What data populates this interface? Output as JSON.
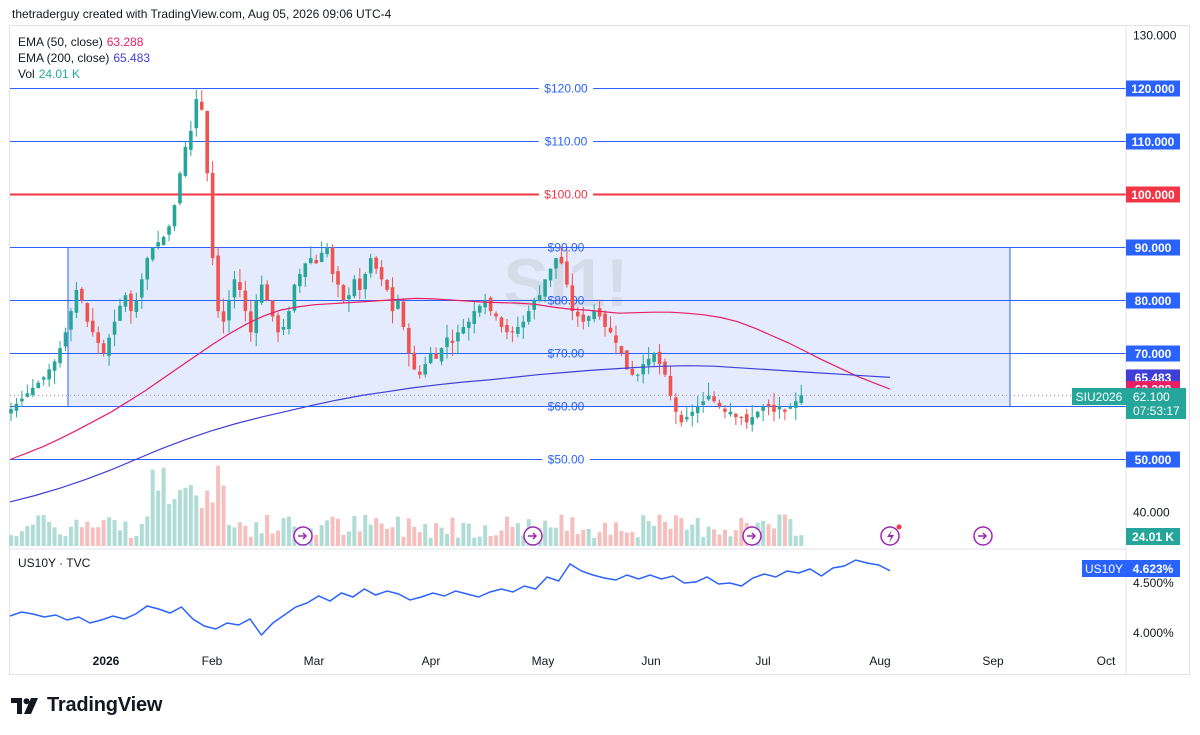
{
  "header": {
    "attribution": "thetraderguy created with TradingView.com, Aug 05, 2026 09:06 UTC-4"
  },
  "legend": {
    "ema50": {
      "label": "EMA (50, close)",
      "value": "63.288",
      "color": "#e91e63"
    },
    "ema200": {
      "label": "EMA (200, close)",
      "value": "65.483",
      "color": "#3f3fd8"
    },
    "vol": {
      "label": "Vol",
      "value": "24.01 K",
      "color": "#22ab94"
    }
  },
  "watermark": "SI1!",
  "colors": {
    "up": "#26a69a",
    "down": "#ef5350",
    "hline": "#2962ff",
    "redline": "#f23645",
    "box_fill": "#dfe7fb"
  },
  "chart_data": [
    {
      "type": "candlestick",
      "symbol": "SIU2026",
      "watermark": "SI1!",
      "x_labels": [
        "2026",
        "Feb",
        "Mar",
        "Apr",
        "May",
        "Jun",
        "Jul",
        "Aug",
        "Sep",
        "Oct"
      ],
      "y_axis": {
        "min": 40,
        "max": 130,
        "ticks": [
          "130.000",
          "120.000",
          "110.000",
          "100.000",
          "90.000",
          "80.000",
          "70.000",
          "60.000",
          "50.000",
          "40.000"
        ]
      },
      "price_badges": [
        {
          "text": "120.000",
          "value": 120,
          "color": "#2962ff"
        },
        {
          "text": "110.000",
          "value": 110,
          "color": "#2962ff"
        },
        {
          "text": "100.000",
          "value": 100,
          "color": "#f23645"
        },
        {
          "text": "90.000",
          "value": 90,
          "color": "#2962ff"
        },
        {
          "text": "80.000",
          "value": 80,
          "color": "#2962ff"
        },
        {
          "text": "70.000",
          "value": 70,
          "color": "#2962ff"
        },
        {
          "text": "65.483",
          "value": 65.483,
          "color": "#3f3fd8"
        },
        {
          "text": "63.288",
          "value": 63.288,
          "color": "#e91e63"
        },
        {
          "text": "60.000",
          "value": 60,
          "color": "#2962ff"
        },
        {
          "text": "50.000",
          "value": 50,
          "color": "#2962ff"
        }
      ],
      "horizontal_lines": [
        {
          "value": 120,
          "label": "$120.00",
          "color": "#2962ff"
        },
        {
          "value": 110,
          "label": "$110.00",
          "color": "#2962ff"
        },
        {
          "value": 100,
          "label": "$100.00",
          "color": "#f23645"
        },
        {
          "value": 90,
          "label": "$90.00",
          "color": "#2962ff"
        },
        {
          "value": 80,
          "label": "$80.00",
          "color": "#2962ff"
        },
        {
          "value": 70,
          "label": "$70.00",
          "color": "#2962ff"
        },
        {
          "value": 60,
          "label": "$60.00",
          "color": "#2962ff"
        },
        {
          "value": 50,
          "label": "$50.00",
          "color": "#2962ff"
        }
      ],
      "range_box": {
        "low": 60,
        "high": 90,
        "from": "2026-01-01",
        "to": "2026-08-31"
      },
      "last_price": {
        "symbol": "SIU2026",
        "price": "62.100",
        "countdown": "07:53:17"
      },
      "volume_badge": "24.01 K",
      "series": [
        {
          "name": "SIU2026",
          "values": [
            59.5,
            60.5,
            61.5,
            62.5,
            63.5,
            64.5,
            65.5,
            67,
            68.5,
            71,
            74,
            78,
            82,
            80,
            76,
            74,
            72,
            70,
            73,
            76,
            79,
            81,
            78,
            80,
            84,
            88,
            90,
            91,
            92,
            94,
            98,
            104,
            109,
            112,
            118,
            116,
            104,
            88,
            78,
            76,
            80,
            84,
            82,
            78,
            74,
            80,
            83,
            80,
            77,
            74,
            75,
            78,
            83,
            85,
            87,
            88,
            87,
            89,
            90,
            85,
            83,
            80,
            81,
            84,
            82,
            85,
            88,
            86,
            84,
            82,
            78,
            80,
            75,
            70,
            67,
            66,
            68,
            70,
            69,
            71,
            73,
            72,
            74,
            75,
            76,
            78,
            79,
            80,
            78,
            77,
            75,
            74,
            74,
            75,
            76,
            78,
            80,
            81,
            84,
            86,
            88,
            87,
            83,
            78,
            77,
            76,
            77,
            78,
            77,
            75,
            74,
            72,
            70,
            67,
            66,
            66,
            68,
            69,
            70,
            68,
            66,
            62,
            59,
            57,
            58,
            59,
            60,
            61,
            62,
            61,
            60,
            59,
            59,
            58,
            58,
            57,
            58,
            59,
            60,
            60,
            59,
            60,
            59,
            60,
            61,
            62.1
          ]
        },
        {
          "name": "EMA (50, close)",
          "values": [
            50,
            51.2,
            52.5,
            54,
            55.6,
            57.3,
            59,
            61,
            63,
            65.2,
            67.4,
            69.6,
            71.8,
            73.8,
            75.6,
            77.1,
            78.2,
            78.8,
            79.2,
            79.4,
            79.6,
            79.8,
            80,
            80.2,
            80.4,
            80.3,
            80.1,
            79.9,
            79.7,
            79.6,
            79.5,
            79.3,
            78.8,
            78.4,
            78.2,
            77.9,
            77.6,
            77.7,
            77.8,
            77.8,
            77.6,
            77.3,
            76.8,
            76,
            74.8,
            73.4,
            72,
            70.4,
            68.8,
            67.3,
            65.8,
            64.5,
            63.288
          ]
        },
        {
          "name": "EMA (200, close)",
          "values": [
            42,
            43.2,
            44.6,
            46.2,
            48,
            50,
            52,
            53.8,
            55.4,
            56.8,
            58,
            59.1,
            60.2,
            61.2,
            62.1,
            62.8,
            63.5,
            64.1,
            64.6,
            65,
            65.5,
            66,
            66.4,
            66.8,
            67.1,
            67.4,
            67.6,
            67.7,
            67.6,
            67.3,
            67,
            66.7,
            66.4,
            66.1,
            65.8,
            65.483
          ]
        }
      ]
    },
    {
      "type": "line",
      "symbol": "US10Y",
      "title": "US10Y · TVC",
      "y_axis": {
        "ticks": [
          "4.500%",
          "4.000%"
        ]
      },
      "last_value": "4.623%",
      "series": [
        {
          "name": "US10Y",
          "values": [
            4.17,
            4.21,
            4.19,
            4.16,
            4.18,
            4.13,
            4.16,
            4.1,
            4.13,
            4.17,
            4.14,
            4.19,
            4.27,
            4.24,
            4.2,
            4.26,
            4.14,
            4.07,
            4.04,
            4.1,
            4.08,
            4.14,
            3.98,
            4.1,
            4.18,
            4.26,
            4.3,
            4.37,
            4.32,
            4.4,
            4.36,
            4.44,
            4.38,
            4.42,
            4.39,
            4.33,
            4.36,
            4.4,
            4.37,
            4.42,
            4.39,
            4.36,
            4.41,
            4.44,
            4.41,
            4.47,
            4.44,
            4.56,
            4.52,
            4.69,
            4.62,
            4.58,
            4.55,
            4.53,
            4.58,
            4.54,
            4.58,
            4.54,
            4.57,
            4.5,
            4.51,
            4.56,
            4.49,
            4.5,
            4.47,
            4.55,
            4.59,
            4.56,
            4.62,
            4.6,
            4.64,
            4.57,
            4.65,
            4.67,
            4.73,
            4.7,
            4.68,
            4.623
          ]
        }
      ]
    }
  ],
  "footer": {
    "brand": "TradingView"
  }
}
